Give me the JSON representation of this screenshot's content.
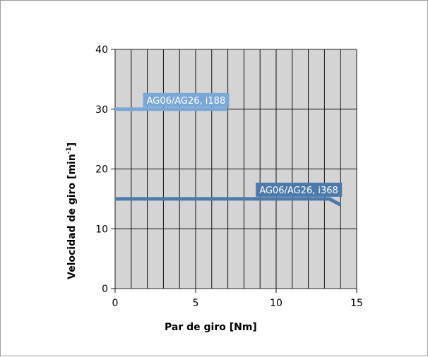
{
  "chart_data": {
    "type": "line",
    "xlabel": "Par de giro [Nm]",
    "ylabel": "Velocidad de giro [min",
    "ylabel_sup": "-1",
    "ylabel_end": "]",
    "xlim": [
      0,
      15
    ],
    "ylim": [
      0,
      40
    ],
    "x_ticks": [
      0,
      5,
      10,
      15
    ],
    "y_ticks": [
      0,
      10,
      20,
      30,
      40
    ],
    "x_tick_labels": [
      "0",
      "5",
      "10",
      "15"
    ],
    "y_tick_labels": [
      "0",
      "10",
      "20",
      "30",
      "40"
    ],
    "grid": true,
    "plot_background": "#d4d4d4",
    "series": [
      {
        "name": "AG06/AG26, i188",
        "color": "#7ba7d6",
        "x": [
          0,
          7
        ],
        "y": [
          30,
          30
        ]
      },
      {
        "name": "AG06/AG26, i368",
        "color": "#4d7aab",
        "x": [
          0,
          13.3,
          14
        ],
        "y": [
          15,
          15,
          14
        ]
      }
    ]
  }
}
